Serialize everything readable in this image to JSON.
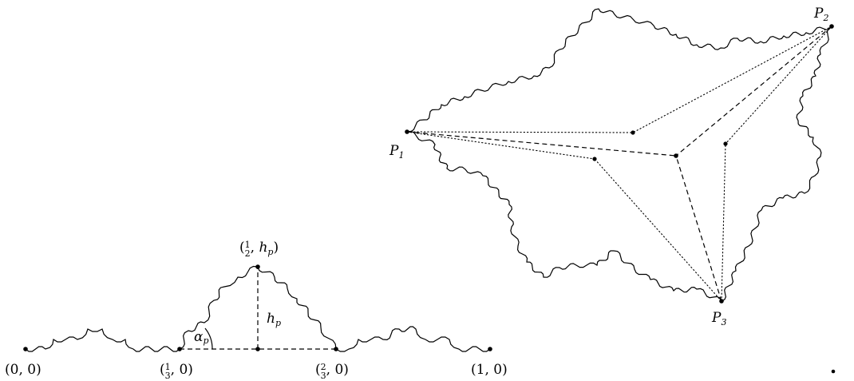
{
  "left_figure": {
    "labels": {
      "origin": "(0, 0)",
      "one_third": "(1/3, 0)",
      "two_thirds": "(2/3, 0)",
      "one": "(1, 0)",
      "apex": "(1/2, h_p)",
      "height": "h_p",
      "angle": "α_p"
    },
    "colors": {
      "stroke": "#000000",
      "background": "#ffffff"
    }
  },
  "right_figure": {
    "labels": {
      "p1": "P_1",
      "p2": "P_2",
      "p3": "P_3"
    }
  },
  "icons": {
    "origin": "dot-marker",
    "one_third": "dot-marker",
    "midpoint": "dot-marker",
    "two_thirds": "dot-marker",
    "one": "dot-marker",
    "apex": "dot-marker",
    "p1": "dot-marker",
    "p2": "dot-marker",
    "p3": "dot-marker",
    "centroid": "dot-marker",
    "mini_centroids": "dot-marker",
    "stray": "dot-marker"
  }
}
